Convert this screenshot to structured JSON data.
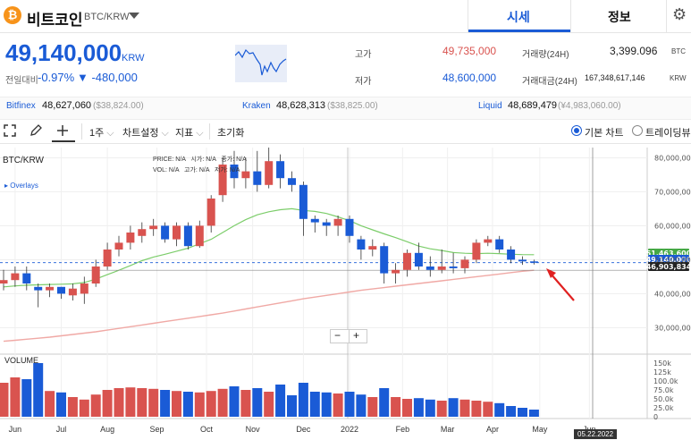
{
  "header": {
    "coin_symbol": "₿",
    "coin_name": "비트코인",
    "pair": "BTC/KRW",
    "tab_quote": "시세",
    "tab_info": "정보"
  },
  "summary": {
    "price": "49,140,000",
    "price_unit": "KRW",
    "change_label": "전일대비",
    "change_pct": "-0.97%",
    "change_abs": "▼ -480,000",
    "high_label": "고가",
    "high_value": "49,735,000",
    "low_label": "저가",
    "low_value": "48,600,000",
    "volume_label": "거래량(24H)",
    "volume_value": "3,399.096",
    "volume_unit": "BTC",
    "turnover_label": "거래대금(24H)",
    "turnover_value": "167,348,617,146",
    "turnover_unit": "KRW"
  },
  "exchanges": [
    {
      "name": "Bitfinex",
      "value": "48,627,060",
      "sub": "($38,824.00)"
    },
    {
      "name": "Kraken",
      "value": "48,628,313",
      "sub": "($38,825.00)"
    },
    {
      "name": "Liquid",
      "value": "48,689,479",
      "sub": "(¥4,983,060.00)"
    }
  ],
  "toolbar": {
    "period": "1주",
    "chart_settings": "차트설정",
    "indicators": "지표",
    "reset": "초기화",
    "basic_chart": "기본 차트",
    "trading_view": "트레이딩뷰"
  },
  "chart_labels": {
    "pair": "BTC/KRW",
    "overlays": "Overlays",
    "info_price": "PRICE:",
    "info_vol": "VOL:",
    "info_na": "N/A",
    "info_open": "시가:",
    "info_close": "종가:",
    "info_high": "고가:",
    "info_low": "저가:",
    "volume_title": "VOLUME",
    "zoom_minus": "−",
    "zoom_plus": "+",
    "date_badge": "05.22.2022"
  },
  "colors": {
    "up": "#d9534f",
    "down": "#1a5bd6",
    "ma_short": "#7ccd6a",
    "ma_long": "#f0a9a5",
    "current_price_line": "#1a5bd6",
    "brand": "#1a5bd6"
  },
  "chart_data": {
    "type": "candlestick",
    "interval": "1 week",
    "y_ticks": [
      "80,000,000",
      "70,000,000",
      "60,000,000",
      "50,000,000",
      "40,000,000",
      "30,000,000"
    ],
    "y_tick_values": [
      80000000,
      70000000,
      60000000,
      50000000,
      40000000,
      30000000
    ],
    "ylim": [
      23000000,
      83000000
    ],
    "x_ticks": [
      "Jun",
      "Jul",
      "Aug",
      "Sep",
      "Oct",
      "Nov",
      "Dec",
      "2022",
      "Feb",
      "Mar",
      "Apr",
      "May",
      "Jun"
    ],
    "x_tick_index": [
      1,
      5,
      9,
      13.3,
      17.6,
      21.6,
      26,
      30,
      34.6,
      38.5,
      42.4,
      46.5,
      50.8
    ],
    "price_tags": [
      {
        "value": 51463600,
        "text": "51,463,600",
        "color": "#45a845"
      },
      {
        "value": 49140000,
        "text": "49,140,000",
        "color": "#1a5bd6"
      },
      {
        "value": 46903834,
        "text": "46,903,834",
        "color": "#222222"
      }
    ],
    "candles": [
      [
        43000000,
        44000000,
        47000000,
        41000000
      ],
      [
        44000000,
        46000000,
        48000000,
        42000000
      ],
      [
        46000000,
        43000000,
        48000000,
        41000000
      ],
      [
        42000000,
        41000000,
        43000000,
        36000000
      ],
      [
        41000000,
        42000000,
        43000000,
        39000000
      ],
      [
        42000000,
        40000000,
        42000000,
        38500000
      ],
      [
        39500000,
        41500000,
        43000000,
        38000000
      ],
      [
        40000000,
        43000000,
        45000000,
        37000000
      ],
      [
        43000000,
        48000000,
        50000000,
        42000000
      ],
      [
        48000000,
        53000000,
        55000000,
        47000000
      ],
      [
        53000000,
        55000000,
        57000000,
        51000000
      ],
      [
        55000000,
        58000000,
        60000000,
        53000000
      ],
      [
        57000000,
        59000000,
        61000000,
        55000000
      ],
      [
        59000000,
        60000000,
        62000000,
        57000000
      ],
      [
        60000000,
        56000000,
        61000000,
        55000000
      ],
      [
        56000000,
        60000000,
        61000000,
        54000000
      ],
      [
        60000000,
        54000000,
        61000000,
        53000000
      ],
      [
        54000000,
        60000000,
        61500000,
        53500000
      ],
      [
        60000000,
        68000000,
        69000000,
        58000000
      ],
      [
        69000000,
        78000000,
        80000000,
        67000000
      ],
      [
        78000000,
        74000000,
        82000000,
        71000000
      ],
      [
        74000000,
        76000000,
        80000000,
        71000000
      ],
      [
        76000000,
        72000000,
        82000000,
        70000000
      ],
      [
        72000000,
        79000000,
        83000000,
        71000000
      ],
      [
        79000000,
        74000000,
        81000000,
        71000000
      ],
      [
        74000000,
        72000000,
        76000000,
        70000000
      ],
      [
        72000000,
        62000000,
        73000000,
        57000000
      ],
      [
        62000000,
        61000000,
        63000000,
        58000000
      ],
      [
        61000000,
        60000000,
        62000000,
        57000000
      ],
      [
        60000000,
        62000000,
        63000000,
        57000000
      ],
      [
        62000000,
        57000000,
        63000000,
        55000000
      ],
      [
        56000000,
        53000000,
        57000000,
        50000000
      ],
      [
        53000000,
        54000000,
        56000000,
        51000000
      ],
      [
        54000000,
        46000000,
        55000000,
        43000000
      ],
      [
        46000000,
        47000000,
        49000000,
        43000000
      ],
      [
        47000000,
        52000000,
        53000000,
        45000000
      ],
      [
        52000000,
        48000000,
        55000000,
        47000000
      ],
      [
        48000000,
        47000000,
        51000000,
        45000000
      ],
      [
        47000000,
        48000000,
        53000000,
        46000000
      ],
      [
        48000000,
        47500000,
        52000000,
        46000000
      ],
      [
        47500000,
        50000000,
        51000000,
        46000000
      ],
      [
        50000000,
        55000000,
        56000000,
        49000000
      ],
      [
        55000000,
        56000000,
        57000000,
        54000000
      ],
      [
        56000000,
        53000000,
        57000000,
        52000000
      ],
      [
        53000000,
        50000000,
        54000000,
        49000000
      ],
      [
        50000000,
        49500000,
        51000000,
        48500000
      ],
      [
        49500000,
        49140000,
        50000000,
        48600000
      ]
    ],
    "volume": {
      "ticks": [
        "150k",
        "125k",
        "100.0k",
        "75.0k",
        "50.0k",
        "25.0k",
        "0"
      ],
      "tick_values": [
        150000,
        125000,
        100000,
        75000,
        50000,
        25000,
        0
      ],
      "max": 160000,
      "values": [
        95000,
        110000,
        105000,
        150000,
        72000,
        68000,
        55000,
        48000,
        62000,
        75000,
        80000,
        82000,
        80000,
        78000,
        75000,
        72000,
        70000,
        68000,
        72000,
        78000,
        85000,
        75000,
        80000,
        70000,
        90000,
        60000,
        95000,
        70000,
        68000,
        65000,
        70000,
        62000,
        55000,
        80000,
        55000,
        50000,
        52000,
        48000,
        45000,
        52000,
        48000,
        45000,
        42000,
        38000,
        30000,
        25000,
        20000
      ]
    },
    "ma_short": [
      42000000,
      42300000,
      42500000,
      42600000,
      42700000,
      42800000,
      42900000,
      43300000,
      44300000,
      45600000,
      46900000,
      48300000,
      49700000,
      50800000,
      51600000,
      52500000,
      53400000,
      54700000,
      56000000,
      58000000,
      60000000,
      61800000,
      63200000,
      64100000,
      64700000,
      65000000,
      64500000,
      64200000,
      63600000,
      62600000,
      61500000,
      60000000,
      58800000,
      57600000,
      56500000,
      55300000,
      54000000,
      53200000,
      52700000,
      52100000,
      51900000,
      51800000,
      51900000,
      51800000,
      51600000,
      51500000,
      51463600
    ],
    "ma_long": [
      26000000,
      26300000,
      26600000,
      26900000,
      27200000,
      27600000,
      28000000,
      28400000,
      28800000,
      29300000,
      29800000,
      30300000,
      30800000,
      31300000,
      31800000,
      32300000,
      32800000,
      33300000,
      33800000,
      34300000,
      34900000,
      35500000,
      36100000,
      36700000,
      37300000,
      37900000,
      38500000,
      39000000,
      39500000,
      40000000,
      40500000,
      41000000,
      41400000,
      41800000,
      42200000,
      42600000,
      43000000,
      43400000,
      43800000,
      44200000,
      44600000,
      45000000,
      45400000,
      45800000,
      46200000,
      46600000,
      46903834
    ]
  }
}
